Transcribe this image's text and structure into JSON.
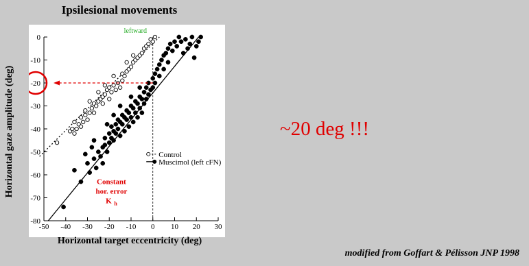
{
  "chart_data": {
    "type": "scatter",
    "title": "Ipsilesional movements",
    "xlabel": "Horizontal target eccentricity (deg)",
    "ylabel": "Horizontal gaze amplitude (deg)",
    "xlim": [
      -50,
      30
    ],
    "ylim": [
      -80,
      0
    ],
    "xticks": [
      -50,
      -40,
      -30,
      -20,
      -10,
      0,
      10,
      20,
      30
    ],
    "yticks": [
      0,
      -10,
      -20,
      -30,
      -40,
      -50,
      -60,
      -70,
      -80
    ],
    "grid": false,
    "legend_position": "lower-right",
    "series": [
      {
        "name": "Control",
        "marker": "open-circle",
        "points": [
          [
            -44,
            -46
          ],
          [
            -38,
            -41
          ],
          [
            -37,
            -40
          ],
          [
            -36,
            -42
          ],
          [
            -35,
            -40
          ],
          [
            -36,
            -37
          ],
          [
            -34,
            -38
          ],
          [
            -33,
            -39
          ],
          [
            -33,
            -35
          ],
          [
            -32,
            -37
          ],
          [
            -31,
            -34
          ],
          [
            -30,
            -36
          ],
          [
            -31,
            -32
          ],
          [
            -29,
            -33
          ],
          [
            -28,
            -31
          ],
          [
            -27,
            -29
          ],
          [
            -27,
            -33
          ],
          [
            -26,
            -30
          ],
          [
            -25,
            -28
          ],
          [
            -24,
            -27
          ],
          [
            -23,
            -29
          ],
          [
            -23,
            -26
          ],
          [
            -22,
            -25
          ],
          [
            -21,
            -23
          ],
          [
            -20,
            -27
          ],
          [
            -20,
            -22
          ],
          [
            -19,
            -24
          ],
          [
            -18,
            -21
          ],
          [
            -17,
            -23
          ],
          [
            -16,
            -20
          ],
          [
            -15,
            -22
          ],
          [
            -14,
            -19
          ],
          [
            -14,
            -16
          ],
          [
            -13,
            -17
          ],
          [
            -12,
            -15
          ],
          [
            -11,
            -14
          ],
          [
            -10,
            -13
          ],
          [
            -9,
            -11
          ],
          [
            -8,
            -10
          ],
          [
            -7,
            -9
          ],
          [
            -6,
            -8
          ],
          [
            -5,
            -7
          ],
          [
            -4,
            -5
          ],
          [
            -3,
            -4
          ],
          [
            -2,
            -3
          ],
          [
            -1,
            -1
          ],
          [
            0,
            -2
          ],
          [
            1,
            0
          ],
          [
            -18,
            -17
          ],
          [
            -22,
            -21
          ],
          [
            -25,
            -24
          ],
          [
            -29,
            -28
          ],
          [
            -12,
            -11
          ],
          [
            -9,
            -8
          ]
        ]
      },
      {
        "name": "Muscimol (left cFN)",
        "marker": "filled-circle",
        "points": [
          [
            -41,
            -74
          ],
          [
            -33,
            -63
          ],
          [
            -30,
            -55
          ],
          [
            -29,
            -59
          ],
          [
            -27,
            -53
          ],
          [
            -26,
            -57
          ],
          [
            -25,
            -50
          ],
          [
            -24,
            -52
          ],
          [
            -23,
            -48
          ],
          [
            -23,
            -55
          ],
          [
            -22,
            -44
          ],
          [
            -22,
            -47
          ],
          [
            -21,
            -50
          ],
          [
            -20,
            -46
          ],
          [
            -20,
            -42
          ],
          [
            -19,
            -44
          ],
          [
            -19,
            -39
          ],
          [
            -18,
            -41
          ],
          [
            -18,
            -45
          ],
          [
            -17,
            -38
          ],
          [
            -17,
            -42
          ],
          [
            -16,
            -36
          ],
          [
            -16,
            -40
          ],
          [
            -15,
            -43
          ],
          [
            -15,
            -37
          ],
          [
            -14,
            -34
          ],
          [
            -14,
            -38
          ],
          [
            -13,
            -41
          ],
          [
            -13,
            -35
          ],
          [
            -12,
            -32
          ],
          [
            -12,
            -36
          ],
          [
            -11,
            -39
          ],
          [
            -11,
            -33
          ],
          [
            -10,
            -30
          ],
          [
            -10,
            -35
          ],
          [
            -9,
            -37
          ],
          [
            -9,
            -31
          ],
          [
            -8,
            -28
          ],
          [
            -8,
            -33
          ],
          [
            -7,
            -35
          ],
          [
            -7,
            -29
          ],
          [
            -6,
            -26
          ],
          [
            -6,
            -31
          ],
          [
            -5,
            -27
          ],
          [
            -5,
            -33
          ],
          [
            -4,
            -24
          ],
          [
            -4,
            -29
          ],
          [
            -3,
            -22
          ],
          [
            -3,
            -27
          ],
          [
            -2,
            -20
          ],
          [
            -2,
            -25
          ],
          [
            -1,
            -23
          ],
          [
            0,
            -18
          ],
          [
            0,
            -22
          ],
          [
            1,
            -16
          ],
          [
            1,
            -20
          ],
          [
            2,
            -14
          ],
          [
            3,
            -12
          ],
          [
            3,
            -17
          ],
          [
            4,
            -10
          ],
          [
            5,
            -8
          ],
          [
            5,
            -14
          ],
          [
            6,
            -7
          ],
          [
            7,
            -5
          ],
          [
            7,
            -11
          ],
          [
            8,
            -3
          ],
          [
            9,
            -6
          ],
          [
            10,
            -2
          ],
          [
            11,
            -4
          ],
          [
            12,
            0
          ],
          [
            13,
            -2
          ],
          [
            14,
            -7
          ],
          [
            15,
            -1
          ],
          [
            16,
            -5
          ],
          [
            17,
            -3
          ],
          [
            18,
            0
          ],
          [
            19,
            -9
          ],
          [
            20,
            -4
          ],
          [
            21,
            -2
          ],
          [
            22,
            0
          ],
          [
            -28,
            -48
          ],
          [
            -21,
            -38
          ],
          [
            -15,
            -30
          ],
          [
            -10,
            -26
          ],
          [
            -6,
            -22
          ],
          [
            -27,
            -45
          ],
          [
            -31,
            -51
          ],
          [
            -36,
            -58
          ],
          [
            -18,
            -34
          ]
        ]
      }
    ],
    "fit_lines": [
      {
        "series": "Control",
        "style": "dotted",
        "x": [
          -52,
          3
        ],
        "y": [
          -52,
          0
        ]
      },
      {
        "series": "Muscimol (left cFN)",
        "style": "solid",
        "x": [
          -48,
          21
        ],
        "y": [
          -80,
          0
        ]
      }
    ],
    "reference_line": {
      "x": 0,
      "style": "dashed"
    },
    "annotations": {
      "top": "leftward",
      "top_color": "#22aa22",
      "constant_error": [
        "Constant",
        "hor. error",
        "K",
        "h"
      ],
      "constant_error_color": "#e00000",
      "arrow_to_y": -20,
      "highlight_y_tick": -20,
      "highlight_color": "#e00000"
    }
  },
  "side_text": {
    "big_annotation": "~20 deg !!!",
    "citation": "modified from Goffart & Pélisson JNP 1998"
  }
}
